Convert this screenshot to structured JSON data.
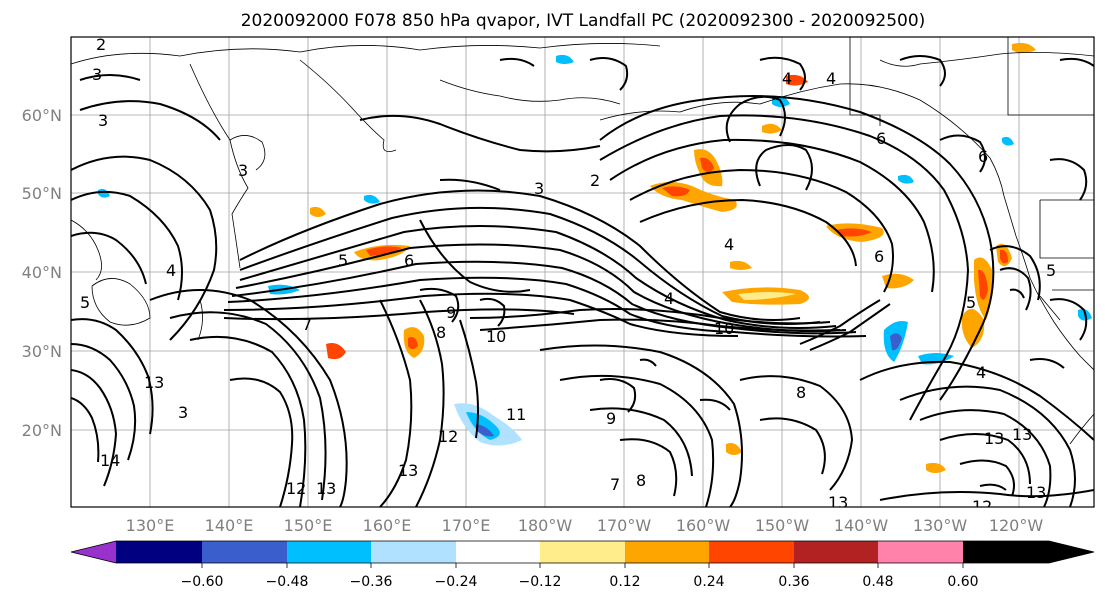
{
  "title": "2020092000 F078 850 hPa qvapor, IVT Landfall PC (2020092300 - 2020092500)",
  "map": {
    "lat_labels": [
      "60°N",
      "50°N",
      "40°N",
      "30°N",
      "20°N"
    ],
    "lon_labels": [
      "130°E",
      "140°E",
      "150°E",
      "160°E",
      "170°E",
      "180°W",
      "170°W",
      "160°W",
      "150°W",
      "140°W",
      "130°W",
      "120°W"
    ],
    "contour_labels": [
      "2",
      "3",
      "3",
      "3",
      "3",
      "3",
      "4",
      "5",
      "5",
      "6",
      "7",
      "8",
      "9",
      "10",
      "10",
      "11",
      "12",
      "12",
      "13",
      "13",
      "13",
      "13",
      "14",
      "2",
      "4",
      "4",
      "4",
      "4",
      "6",
      "6",
      "6",
      "5",
      "5",
      "9",
      "8",
      "7",
      "8",
      "13",
      "12",
      "13",
      "13",
      "4"
    ]
  },
  "colorbar": {
    "colors": [
      "#9932CC",
      "#000080",
      "#3A5FCD",
      "#00BFFF",
      "#B0E2FF",
      "#FFFFFF",
      "#FFEC8B",
      "#FFA500",
      "#FF4500",
      "#B22222",
      "#FF82AB"
    ],
    "tick_labels": [
      "−0.60",
      "−0.48",
      "−0.36",
      "−0.24",
      "−0.12",
      "0.12",
      "0.24",
      "0.36",
      "0.48",
      "0.60"
    ],
    "tick_values": [
      -0.6,
      -0.48,
      -0.36,
      -0.24,
      -0.12,
      0.12,
      0.24,
      0.36,
      0.48,
      0.6
    ]
  }
}
